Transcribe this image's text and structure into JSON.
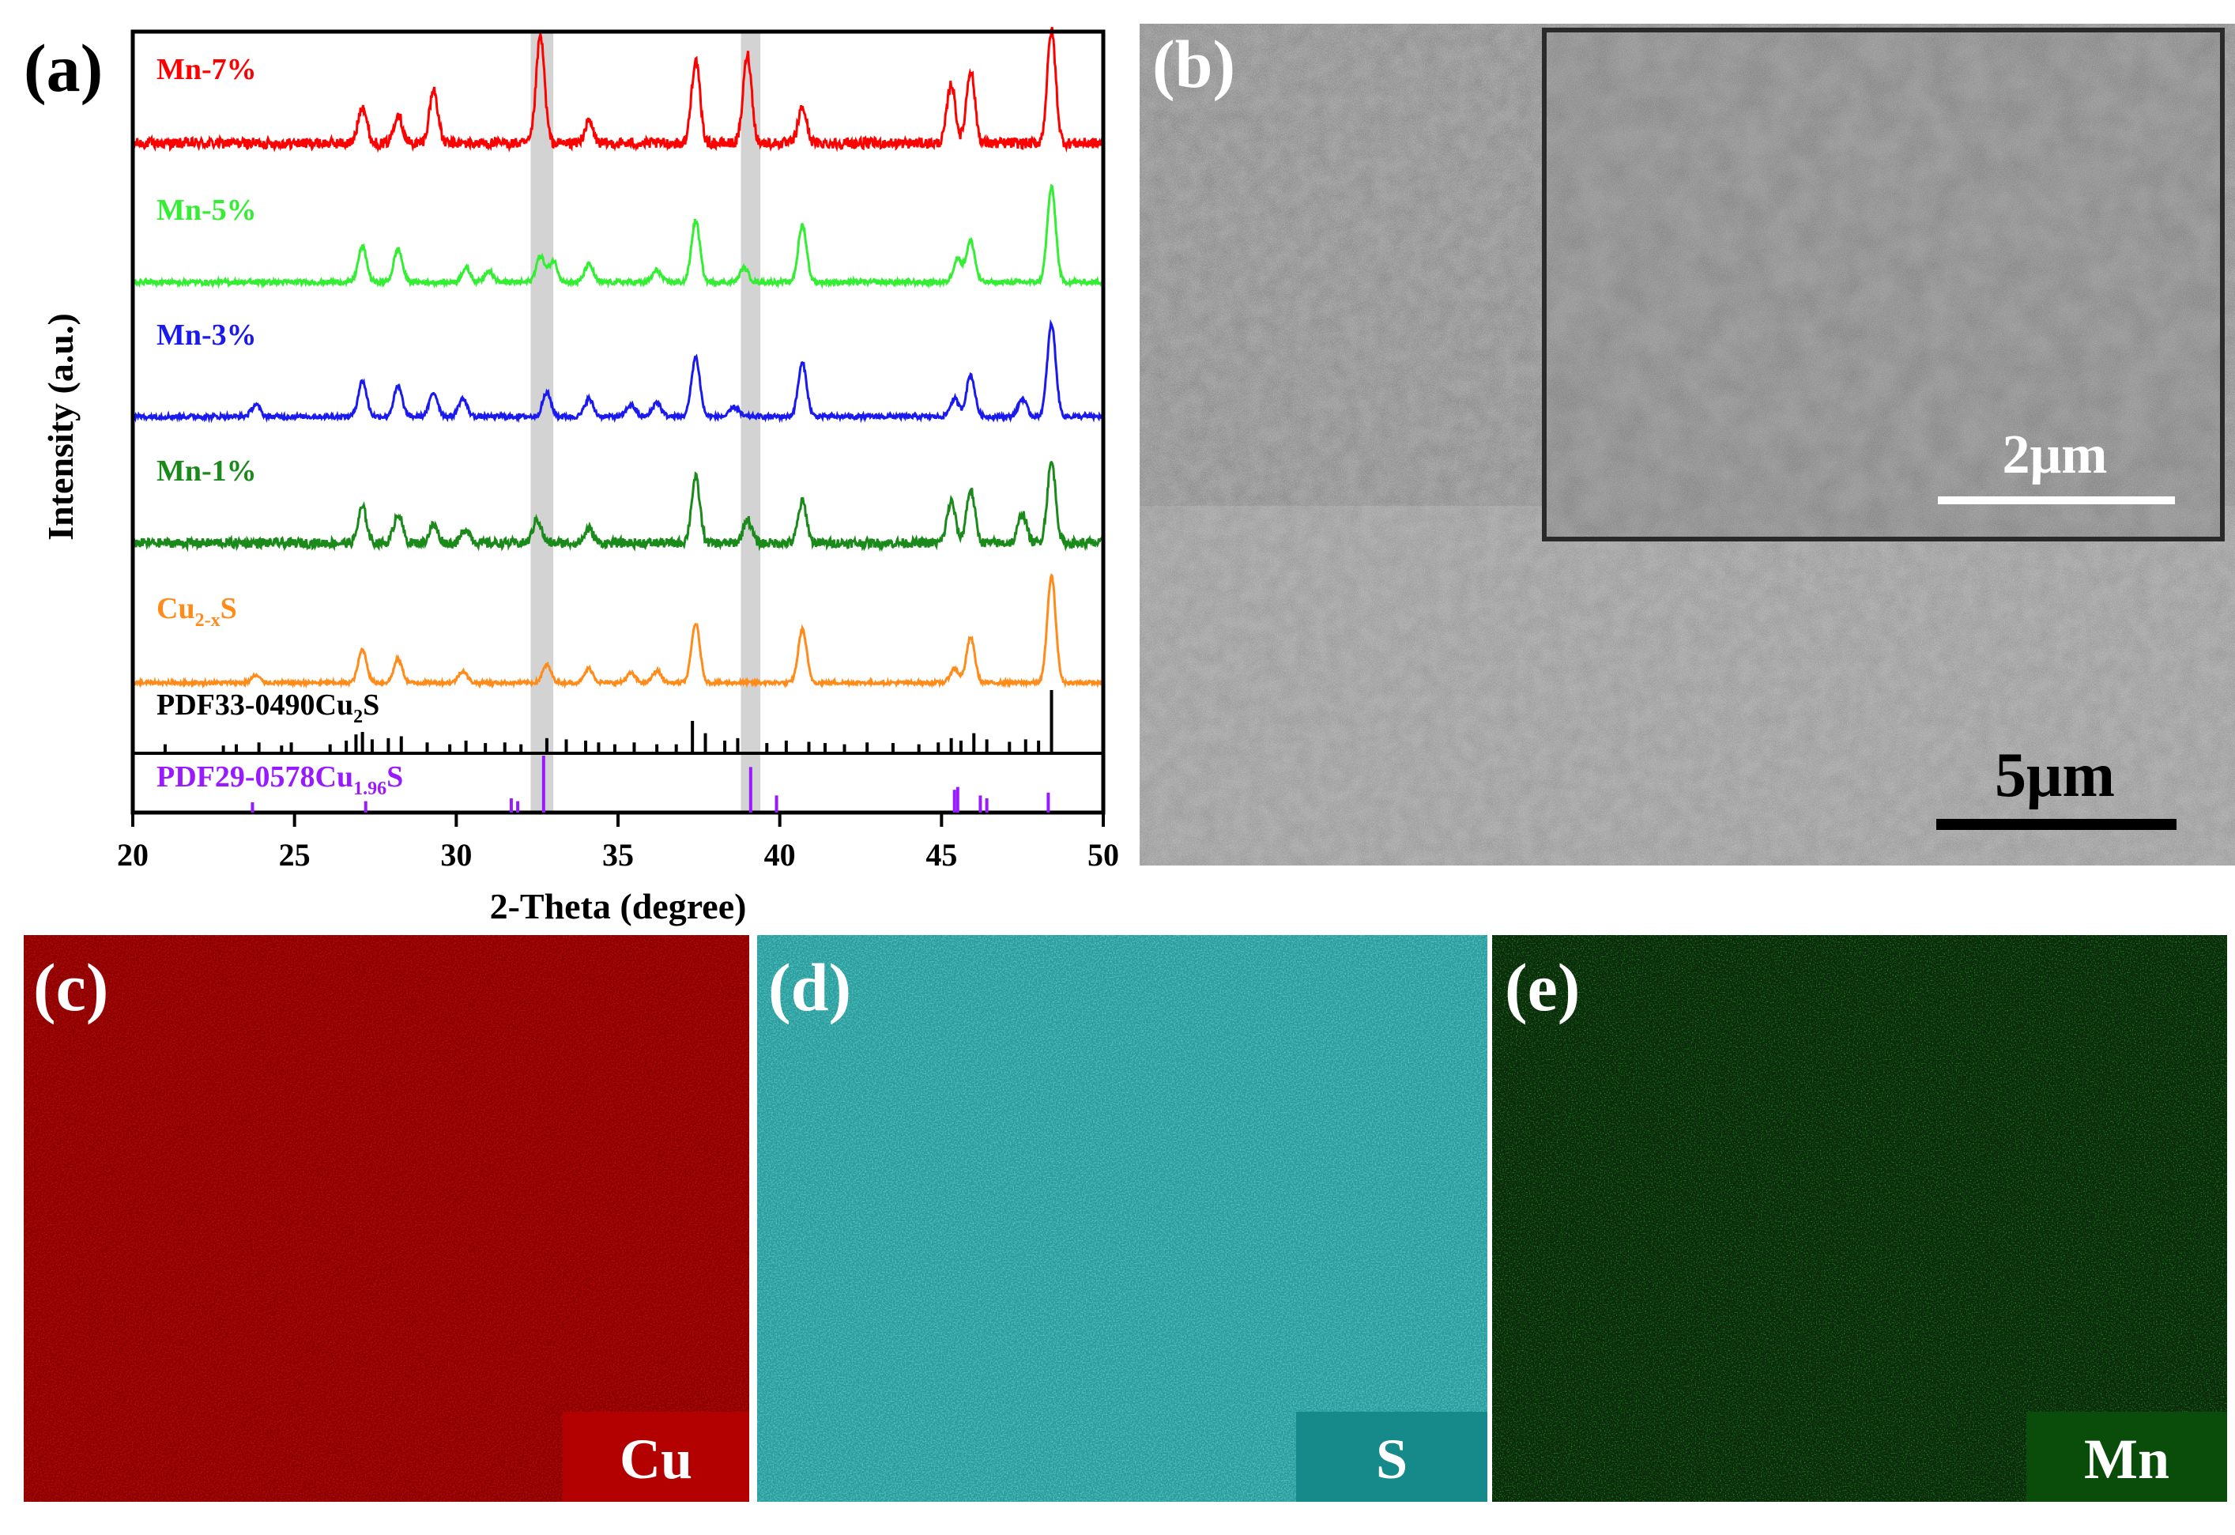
{
  "panel_labels": {
    "a": "(a)",
    "b": "(b)",
    "c": "(c)",
    "d": "(d)",
    "e": "(e)"
  },
  "colors": {
    "mn7": "#ff0000",
    "mn5": "#33ee33",
    "mn3": "#1a1aee",
    "mn1": "#1a8a1a",
    "cu2xs": "#ff8c1a",
    "pdf_cu2s": "#000000",
    "pdf_cu196s": "#9a1aff",
    "map_cu": "#8b0000",
    "map_s": "#2aa3a3",
    "map_mn": "#0b2a0b",
    "tag_cu": "#b30000",
    "tag_s": "#168a8a",
    "tag_mn": "#0a4d0a",
    "highlight": "#d3d3d3"
  },
  "chart_data": {
    "type": "line",
    "title": "",
    "xlabel": "2-Theta (degree)",
    "ylabel": "Intensity (a.u.)",
    "xlim": [
      20,
      50
    ],
    "xticks": [
      20,
      25,
      30,
      35,
      40,
      45,
      50
    ],
    "highlight_bands_2theta": [
      [
        32.3,
        33.0
      ],
      [
        38.8,
        39.4
      ]
    ],
    "series": [
      {
        "name": "Mn-7%",
        "label_main": "Mn-7%",
        "label_sub": "",
        "label_tail": "",
        "color_key": "mn7",
        "noise": 0.09,
        "peaks": [
          [
            27.1,
            0.32
          ],
          [
            28.2,
            0.25
          ],
          [
            29.3,
            0.45
          ],
          [
            32.6,
            0.9
          ],
          [
            34.1,
            0.18
          ],
          [
            37.4,
            0.7
          ],
          [
            39.0,
            0.75
          ],
          [
            40.7,
            0.3
          ],
          [
            45.3,
            0.5
          ],
          [
            45.9,
            0.62
          ],
          [
            48.4,
            0.95
          ]
        ]
      },
      {
        "name": "Mn-5%",
        "label_main": "Mn-5%",
        "label_sub": "",
        "label_tail": "",
        "color_key": "mn5",
        "noise": 0.04,
        "peaks": [
          [
            27.1,
            0.3
          ],
          [
            28.2,
            0.28
          ],
          [
            30.3,
            0.12
          ],
          [
            31.0,
            0.1
          ],
          [
            32.6,
            0.22
          ],
          [
            33.0,
            0.18
          ],
          [
            34.1,
            0.15
          ],
          [
            36.2,
            0.1
          ],
          [
            37.4,
            0.52
          ],
          [
            38.9,
            0.12
          ],
          [
            40.7,
            0.48
          ],
          [
            45.5,
            0.2
          ],
          [
            45.9,
            0.35
          ],
          [
            48.4,
            0.8
          ]
        ]
      },
      {
        "name": "Mn-3%",
        "label_main": "Mn-3%",
        "label_sub": "",
        "label_tail": "",
        "color_key": "mn3",
        "noise": 0.04,
        "peaks": [
          [
            23.8,
            0.1
          ],
          [
            27.1,
            0.3
          ],
          [
            28.2,
            0.25
          ],
          [
            29.3,
            0.2
          ],
          [
            30.2,
            0.15
          ],
          [
            32.8,
            0.2
          ],
          [
            34.1,
            0.15
          ],
          [
            35.4,
            0.1
          ],
          [
            36.2,
            0.12
          ],
          [
            37.4,
            0.5
          ],
          [
            38.6,
            0.08
          ],
          [
            40.7,
            0.45
          ],
          [
            45.4,
            0.15
          ],
          [
            45.9,
            0.35
          ],
          [
            47.5,
            0.15
          ],
          [
            48.4,
            0.78
          ]
        ]
      },
      {
        "name": "Mn-1%",
        "label_main": "Mn-1%",
        "label_sub": "",
        "label_tail": "",
        "color_key": "mn1",
        "noise": 0.08,
        "peaks": [
          [
            27.1,
            0.3
          ],
          [
            28.2,
            0.25
          ],
          [
            29.3,
            0.15
          ],
          [
            30.3,
            0.12
          ],
          [
            32.5,
            0.2
          ],
          [
            34.1,
            0.12
          ],
          [
            37.4,
            0.55
          ],
          [
            39.0,
            0.2
          ],
          [
            40.7,
            0.35
          ],
          [
            45.3,
            0.35
          ],
          [
            45.9,
            0.45
          ],
          [
            47.5,
            0.25
          ],
          [
            48.4,
            0.68
          ]
        ]
      },
      {
        "name": "Cu2-xS",
        "label_main": "Cu",
        "label_sub": "2-x",
        "label_tail": "S",
        "color_key": "cu2xs",
        "noise": 0.03,
        "peaks": [
          [
            23.8,
            0.06
          ],
          [
            27.1,
            0.28
          ],
          [
            28.2,
            0.2
          ],
          [
            30.2,
            0.1
          ],
          [
            32.8,
            0.15
          ],
          [
            34.1,
            0.12
          ],
          [
            35.4,
            0.08
          ],
          [
            36.2,
            0.1
          ],
          [
            37.4,
            0.5
          ],
          [
            40.7,
            0.45
          ],
          [
            45.4,
            0.12
          ],
          [
            45.9,
            0.38
          ],
          [
            48.4,
            0.9
          ]
        ]
      }
    ],
    "reference_top": {
      "name": "PDF33-0490Cu2S",
      "label_main": "PDF33-0490Cu",
      "label_sub": "2",
      "label_tail": "S",
      "color_key": "pdf_cu2s",
      "lines": [
        [
          21.0,
          0.12
        ],
        [
          22.8,
          0.1
        ],
        [
          23.2,
          0.12
        ],
        [
          23.9,
          0.15
        ],
        [
          24.6,
          0.1
        ],
        [
          24.9,
          0.15
        ],
        [
          26.1,
          0.12
        ],
        [
          26.6,
          0.18
        ],
        [
          26.9,
          0.28
        ],
        [
          27.1,
          0.32
        ],
        [
          27.4,
          0.2
        ],
        [
          27.9,
          0.22
        ],
        [
          28.3,
          0.25
        ],
        [
          29.1,
          0.15
        ],
        [
          29.8,
          0.12
        ],
        [
          30.3,
          0.18
        ],
        [
          30.9,
          0.14
        ],
        [
          31.5,
          0.15
        ],
        [
          32.0,
          0.12
        ],
        [
          32.8,
          0.22
        ],
        [
          33.4,
          0.2
        ],
        [
          34.0,
          0.18
        ],
        [
          34.4,
          0.15
        ],
        [
          34.9,
          0.12
        ],
        [
          35.5,
          0.15
        ],
        [
          36.2,
          0.12
        ],
        [
          36.8,
          0.12
        ],
        [
          37.3,
          0.5
        ],
        [
          37.7,
          0.3
        ],
        [
          38.3,
          0.18
        ],
        [
          38.7,
          0.22
        ],
        [
          39.6,
          0.14
        ],
        [
          40.2,
          0.18
        ],
        [
          40.9,
          0.16
        ],
        [
          41.4,
          0.14
        ],
        [
          42.0,
          0.12
        ],
        [
          42.7,
          0.15
        ],
        [
          43.5,
          0.14
        ],
        [
          44.3,
          0.12
        ],
        [
          44.9,
          0.15
        ],
        [
          45.3,
          0.22
        ],
        [
          45.6,
          0.18
        ],
        [
          46.0,
          0.3
        ],
        [
          46.4,
          0.2
        ],
        [
          47.1,
          0.16
        ],
        [
          47.6,
          0.2
        ],
        [
          48.0,
          0.18
        ],
        [
          48.4,
          1.0
        ]
      ]
    },
    "reference_bottom": {
      "name": "PDF29-0578Cu1.96S",
      "label_main": "PDF29-0578Cu",
      "label_sub": "1.96",
      "label_tail": "S",
      "color_key": "pdf_cu196s",
      "lines": [
        [
          23.7,
          0.18
        ],
        [
          27.2,
          0.2
        ],
        [
          31.7,
          0.25
        ],
        [
          31.9,
          0.2
        ],
        [
          32.7,
          1.0
        ],
        [
          39.1,
          0.8
        ],
        [
          39.9,
          0.3
        ],
        [
          45.4,
          0.4
        ],
        [
          45.5,
          0.45
        ],
        [
          46.2,
          0.3
        ],
        [
          46.4,
          0.25
        ],
        [
          48.3,
          0.35
        ]
      ]
    }
  },
  "sem": {
    "scale_main": "5μm",
    "scale_inset": "2μm"
  },
  "eds_maps": [
    {
      "panel": "(c)",
      "element": "Cu"
    },
    {
      "panel": "(d)",
      "element": "S"
    },
    {
      "panel": "(e)",
      "element": "Mn"
    }
  ]
}
